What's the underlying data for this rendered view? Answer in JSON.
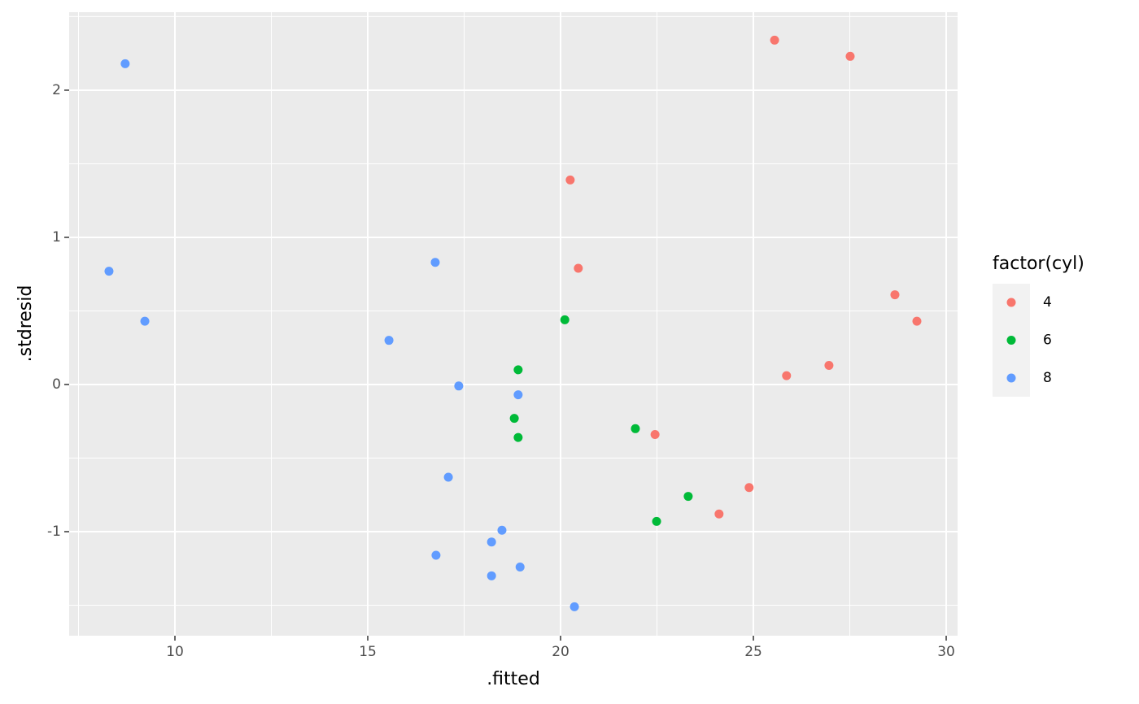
{
  "chart_data": {
    "type": "scatter",
    "x_label": ".fitted",
    "y_label": ".stdresid",
    "legend_title": "factor(cyl)",
    "legend": "right",
    "grid": true,
    "xlim": [
      7.257,
      30.295
    ],
    "xticks": [
      10,
      15,
      20,
      25,
      30
    ],
    "ylim": [
      -1.707,
      2.53
    ],
    "yticks": [
      -1,
      0,
      1,
      2
    ],
    "series": [
      {
        "name": "4",
        "color": "#f8766d",
        "x": [
          25.55,
          27.51,
          20.25,
          20.46,
          28.67,
          29.24,
          25.86,
          26.96,
          22.45,
          24.89,
          24.11
        ],
        "values": [
          2.34,
          2.23,
          1.39,
          0.79,
          0.61,
          0.43,
          0.06,
          0.13,
          -0.34,
          -0.7,
          -0.88
        ]
      },
      {
        "name": "6",
        "color": "#00ba38",
        "x": [
          20.11,
          18.9,
          18.8,
          18.9,
          21.94,
          23.31,
          22.49
        ],
        "values": [
          0.44,
          0.1,
          -0.23,
          -0.36,
          -0.3,
          -0.76,
          -0.93
        ]
      },
      {
        "name": "8",
        "color": "#619cff",
        "x": [
          8.71,
          8.29,
          9.22,
          16.75,
          15.55,
          17.36,
          18.9,
          17.09,
          18.48,
          18.21,
          16.77,
          18.95,
          18.21,
          20.36
        ],
        "values": [
          2.18,
          0.77,
          0.43,
          0.83,
          0.3,
          -0.01,
          -0.07,
          -0.63,
          -0.99,
          -1.07,
          -1.16,
          -1.24,
          -1.3,
          -1.51
        ]
      }
    ]
  }
}
